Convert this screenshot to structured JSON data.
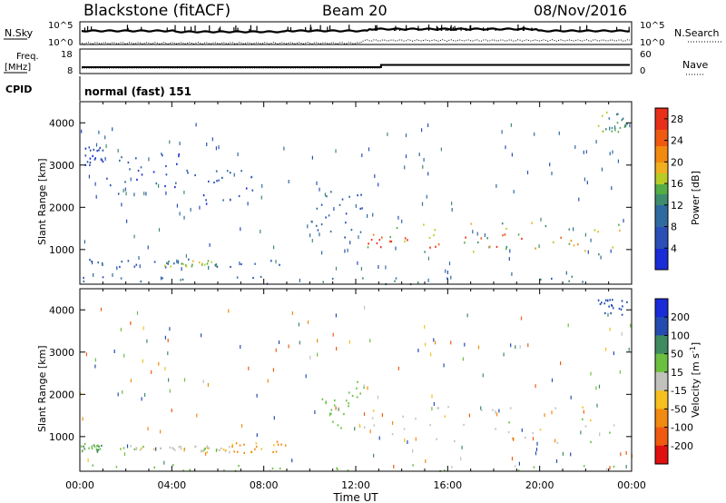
{
  "header": {
    "station": "Blackstone (fitACF)",
    "beam": "Beam 20",
    "date": "08/Nov/2016"
  },
  "status_panels": {
    "nsky_label": "N.Sky",
    "nsearch_label": "N.Search",
    "freq_label_line1": "Freq.",
    "freq_label_line2": "[MHz]",
    "nave_label": "Nave",
    "cpid_label": "CPID",
    "cpid_value": "normal (fast) 151",
    "noise_ticks": [
      "10^5",
      "10^0"
    ],
    "freq_ticks": [
      "18",
      "8"
    ],
    "nave_ticks": [
      "60",
      "0"
    ]
  },
  "chart_data": [
    {
      "type": "heatmap",
      "panel": "power",
      "ylabel": "Slant Range [km]",
      "xlabel": "",
      "colorbar_label": "Power [dB]",
      "colorbar_ticks": [
        4,
        8,
        12,
        16,
        20,
        24,
        28
      ],
      "colorbar_range": [
        0,
        30
      ],
      "ylim": [
        180,
        4500
      ],
      "yticks": [
        1000,
        2000,
        3000,
        4000
      ],
      "xlim_hours": [
        0,
        24
      ],
      "regions": [
        {
          "t0": 0.1,
          "t1": 1.0,
          "r0": 2950,
          "r1": 3550,
          "power": 6
        },
        {
          "t0": 1.0,
          "t1": 4.5,
          "r0": 2300,
          "r1": 3300,
          "power": 6
        },
        {
          "t0": 4.5,
          "t1": 7.5,
          "r0": 2100,
          "r1": 2900,
          "power": 7
        },
        {
          "t0": 0.0,
          "t1": 9.0,
          "r0": 600,
          "r1": 800,
          "power": 8
        },
        {
          "t0": 3.5,
          "t1": 6.0,
          "r0": 620,
          "r1": 760,
          "power": 15
        },
        {
          "t0": 0.0,
          "t1": 24.0,
          "r0": 200,
          "r1": 380,
          "power": 10
        },
        {
          "t0": 9.5,
          "t1": 12.3,
          "r0": 1300,
          "r1": 2400,
          "power": 8
        },
        {
          "t0": 12.2,
          "t1": 23.8,
          "r0": 900,
          "r1": 1700,
          "power": 16
        },
        {
          "t0": 12.4,
          "t1": 22.5,
          "r0": 1050,
          "r1": 1400,
          "power": 26
        },
        {
          "t0": 22.5,
          "t1": 23.8,
          "r0": 3800,
          "r1": 4300,
          "power": 14
        }
      ]
    },
    {
      "type": "heatmap",
      "panel": "velocity",
      "ylabel": "Slant Range [km]",
      "xlabel": "Time UT",
      "colorbar_label": "Velocity [m s^-1]",
      "colorbar_ticks": [
        200,
        100,
        50,
        15,
        -15,
        -50,
        -100,
        -200
      ],
      "ylim": [
        180,
        4500
      ],
      "yticks": [
        1000,
        2000,
        3000,
        4000
      ],
      "xticks": [
        "00:00",
        "04:00",
        "08:00",
        "12:00",
        "16:00",
        "20:00",
        "00:00"
      ],
      "regions": [
        {
          "t0": 0.0,
          "t1": 1.0,
          "r0": 650,
          "r1": 850,
          "velocity": 40
        },
        {
          "t0": 1.5,
          "t1": 5.0,
          "r0": 700,
          "r1": 800,
          "velocity": 0
        },
        {
          "t0": 5.0,
          "t1": 6.5,
          "r0": 650,
          "r1": 800,
          "velocity": 0
        },
        {
          "t0": 6.5,
          "t1": 9.0,
          "r0": 620,
          "r1": 900,
          "velocity": -60
        },
        {
          "t0": 0.0,
          "t1": 24.0,
          "r0": 200,
          "r1": 350,
          "velocity": 30
        },
        {
          "t0": 12.3,
          "t1": 23.8,
          "r0": 850,
          "r1": 1750,
          "velocity": 0
        },
        {
          "t0": 10.5,
          "t1": 12.5,
          "r0": 1200,
          "r1": 2400,
          "velocity": 30
        },
        {
          "t0": 22.5,
          "t1": 23.8,
          "r0": 3900,
          "r1": 4300,
          "velocity": 150
        }
      ]
    }
  ]
}
